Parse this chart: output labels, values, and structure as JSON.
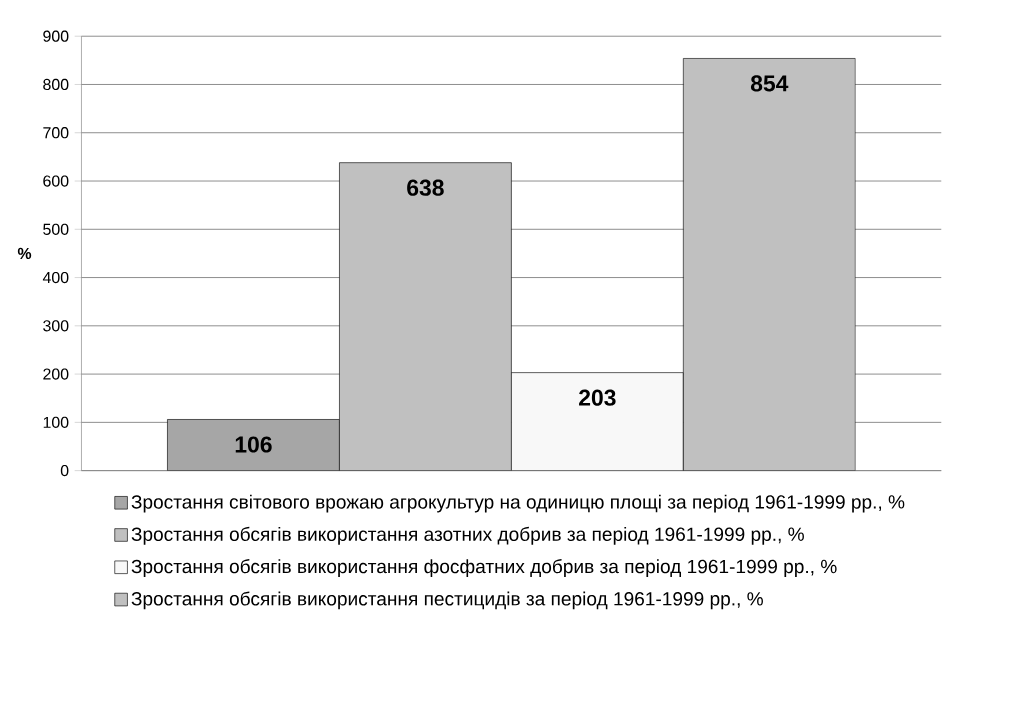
{
  "chart_data": {
    "type": "bar",
    "ylabel": "%",
    "categories": [
      null
    ],
    "series": [
      {
        "name": "Зростання світового врожаю агрокультур на одиницю площі за період 1961-1999 рр., %",
        "color": "#a6a6a6",
        "values": [
          106
        ]
      },
      {
        "name": "Зростання обсягів використання азотних добрив за період 1961-1999 рр., %",
        "color": "#c0c0c0",
        "values": [
          638
        ]
      },
      {
        "name": "Зростання обсягів використання фосфатних добрив за період 1961-1999 рр., %",
        "color": "#f8f8f8",
        "values": [
          203
        ]
      },
      {
        "name": "Зростання обсягів використання пестицидів за період 1961-1999 рр., %",
        "color": "#c0c0c0",
        "values": [
          854
        ]
      }
    ],
    "ylim": [
      0,
      900
    ],
    "yticks": [
      0,
      100,
      200,
      300,
      400,
      500,
      600,
      700,
      800,
      900
    ],
    "grid": "y",
    "legend": "bottom",
    "data_labels": true
  }
}
